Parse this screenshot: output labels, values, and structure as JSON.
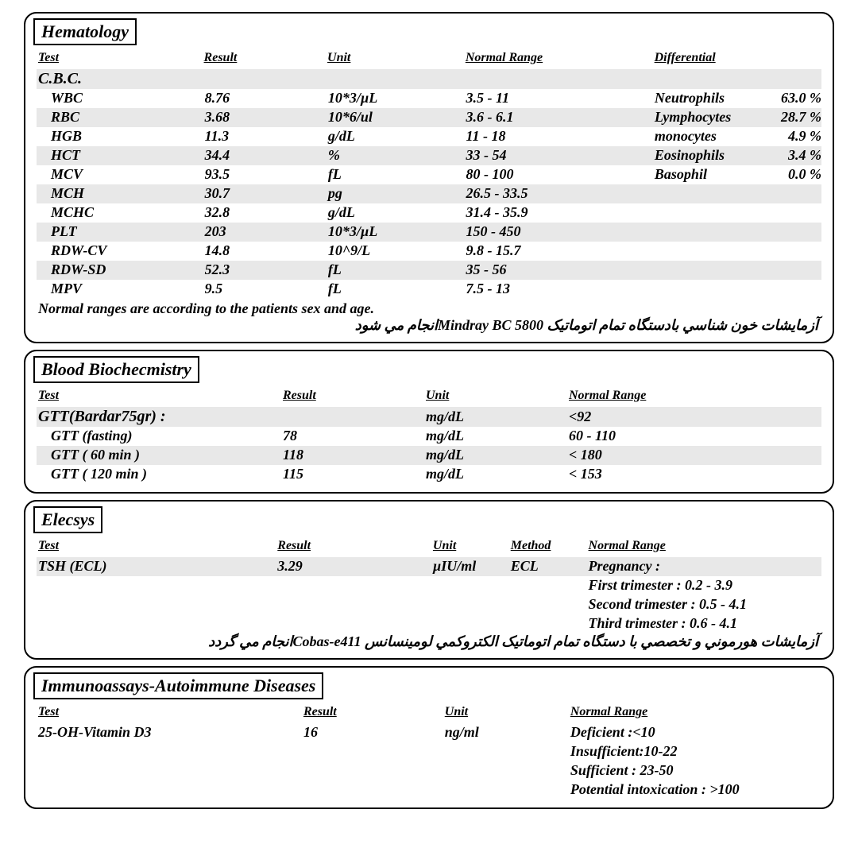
{
  "colors": {
    "bg": "#ffffff",
    "text": "#000000",
    "stripe": "#e8e8e8",
    "border": "#000000"
  },
  "hematology": {
    "title": "Hematology",
    "headers": {
      "test": "Test",
      "result": "Result",
      "unit": "Unit",
      "range": "Normal Range",
      "diff": "Differential"
    },
    "group_label": "C.B.C.",
    "rows": [
      {
        "test": "WBC",
        "result": "8.76",
        "unit": "10*3/µL",
        "range": "3.5 - 11"
      },
      {
        "test": "RBC",
        "result": "3.68",
        "unit": "10*6/ul",
        "range": "3.6 - 6.1"
      },
      {
        "test": "HGB",
        "result": "11.3",
        "unit": "g/dL",
        "range": "11 - 18"
      },
      {
        "test": "HCT",
        "result": "34.4",
        "unit": "%",
        "range": "33 - 54"
      },
      {
        "test": "MCV",
        "result": "93.5",
        "unit": "fL",
        "range": "80 - 100"
      },
      {
        "test": "MCH",
        "result": "30.7",
        "unit": "pg",
        "range": "26.5 - 33.5"
      },
      {
        "test": "MCHC",
        "result": "32.8",
        "unit": "g/dL",
        "range": "31.4 - 35.9"
      },
      {
        "test": "PLT",
        "result": "203",
        "unit": "10*3/µL",
        "range": "150 - 450"
      },
      {
        "test": "RDW-CV",
        "result": "14.8",
        "unit": "10^9/L",
        "range": "9.8 - 15.7"
      },
      {
        "test": "RDW-SD",
        "result": "52.3",
        "unit": "fL",
        "range": "35 - 56"
      },
      {
        "test": "MPV",
        "result": "9.5",
        "unit": "fL",
        "range": "7.5 - 13"
      }
    ],
    "differential": [
      {
        "name": "Neutrophils",
        "value": "63.0 %"
      },
      {
        "name": "Lymphocytes",
        "value": "28.7 %"
      },
      {
        "name": "monocytes",
        "value": "4.9 %"
      },
      {
        "name": "Eosinophils",
        "value": "3.4 %"
      },
      {
        "name": "Basophil",
        "value": "0.0 %"
      }
    ],
    "note_en": "Normal ranges are according to the patients sex and age.",
    "note_fa": "آزمایشات خون شناسي بادستگاه تمام  اتوماتیک Mindray BC 5800انجام مي شود"
  },
  "biochem": {
    "title": "Blood Biochecmistry",
    "headers": {
      "test": "Test",
      "result": "Result",
      "unit": "Unit",
      "range": "Normal Range"
    },
    "group": {
      "label": "GTT(Bardar75gr) :",
      "unit": "mg/dL",
      "range": "<92"
    },
    "rows": [
      {
        "test": "GTT (fasting)",
        "result": "78",
        "unit": "mg/dL",
        "range": "60 - 110"
      },
      {
        "test": "GTT ( 60 min )",
        "result": "118",
        "unit": "mg/dL",
        "range": "< 180"
      },
      {
        "test": "GTT ( 120 min )",
        "result": "115",
        "unit": "mg/dL",
        "range": "< 153"
      }
    ]
  },
  "elecsys": {
    "title": "Elecsys",
    "headers": {
      "test": "Test",
      "result": "Result",
      "unit": "Unit",
      "method": "Method",
      "range": "Normal Range"
    },
    "row": {
      "test": "TSH (ECL)",
      "result": "3.29",
      "unit": "µIU/ml",
      "method": "ECL"
    },
    "range_lines": [
      "Pregnancy :",
      "First trimester    : 0.2 - 3.9",
      "Second trimester : 0.5 - 4.1",
      "Third trimester   : 0.6 - 4.1"
    ],
    "note_fa": "آزمایشات هورموني و تخصصي با دستگاه تمام اتوماتیک الکتروکمي لومینسانس Cobas-e411انجام مي گردد"
  },
  "immuno": {
    "title": "Immunoassays-Autoimmune Diseases",
    "headers": {
      "test": "Test",
      "result": "Result",
      "unit": "Unit",
      "range": "Normal Range"
    },
    "row": {
      "test": "25-OH-Vitamin D3",
      "result": "16",
      "unit": "ng/ml"
    },
    "range_lines": [
      "Deficient  :<10",
      "Insufficient:10-22",
      "Sufficient  : 23-50",
      "Potential intoxication : >100"
    ]
  }
}
